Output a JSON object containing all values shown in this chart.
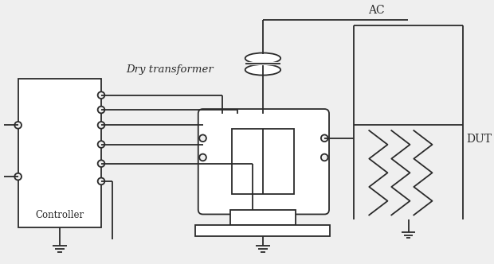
{
  "bg_color": "#efefef",
  "line_color": "#2a2a2a",
  "labels": {
    "controller": "Controller",
    "dry_transformer": "Dry transformer",
    "ac": "AC",
    "dut": "DUT"
  },
  "figsize": [
    6.2,
    3.32
  ],
  "dpi": 100
}
